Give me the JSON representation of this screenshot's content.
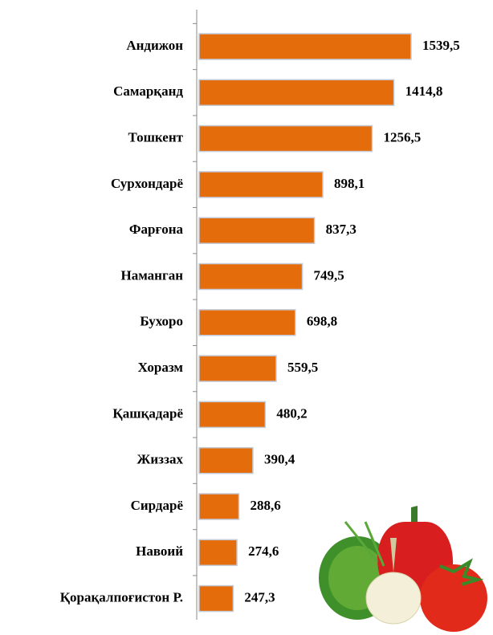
{
  "chart_data": {
    "type": "bar",
    "orientation": "horizontal",
    "categories": [
      "Андижон",
      "Самарқанд",
      "Тошкент",
      "Сурхондарё",
      "Фарғона",
      "Наманган",
      "Бухоро",
      "Хоразм",
      "Қашқадарё",
      "Жиззах",
      "Сирдарё",
      "Навоий",
      "Қорақалпоғистон Р."
    ],
    "values": [
      1539.5,
      1414.8,
      1256.5,
      898.1,
      837.3,
      749.5,
      698.8,
      559.5,
      480.2,
      390.4,
      288.6,
      274.6,
      247.3
    ],
    "value_labels": [
      "1539,5",
      "1414,8",
      "1256,5",
      "898,1",
      "837,3",
      "749,5",
      "698,8",
      "559,5",
      "480,2",
      "390,4",
      "288,6",
      "274,6",
      "247,3"
    ],
    "color": "#e46c0a"
  }
}
